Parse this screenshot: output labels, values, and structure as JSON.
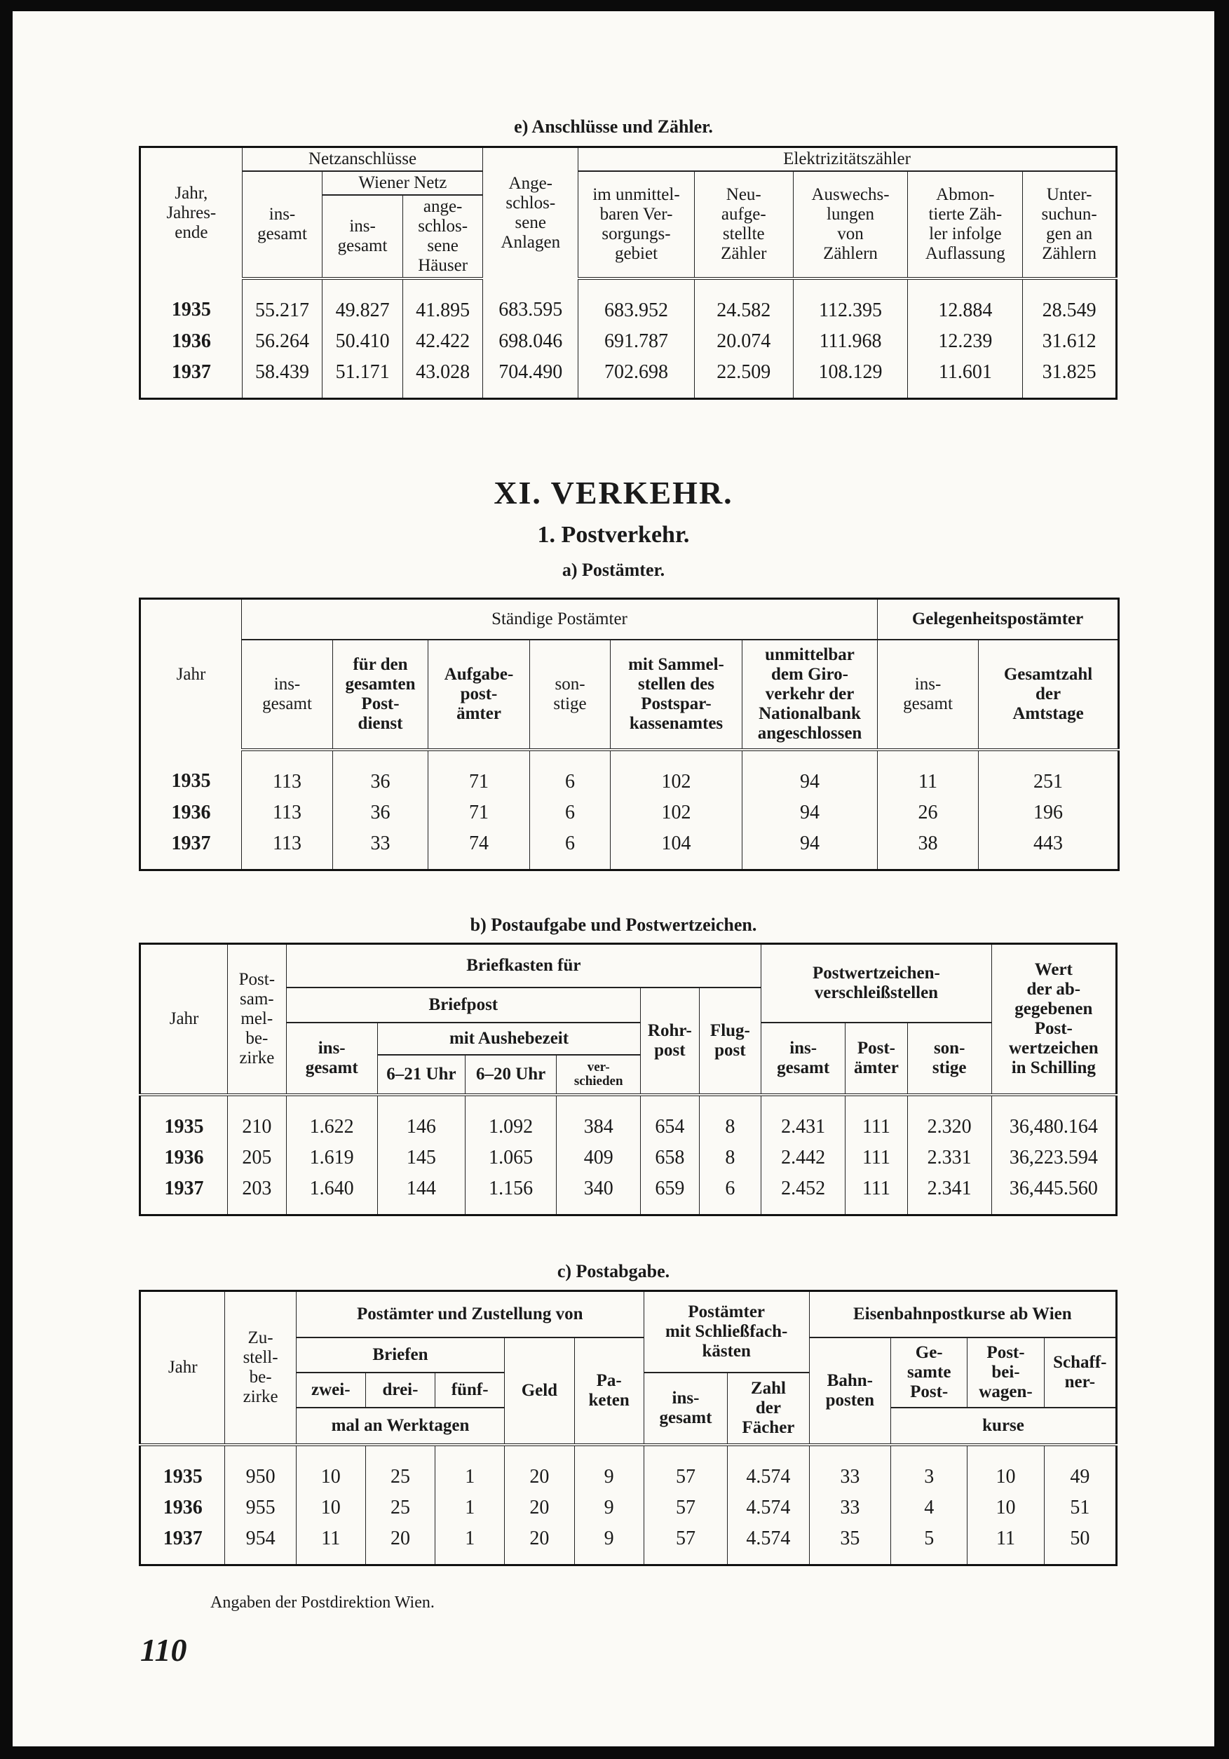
{
  "table_e": {
    "title": "e) Anschlüsse und Zähler.",
    "h_jahr": "Jahr,\nJahres-\nende",
    "h_netz": "Netzanschlüsse",
    "h_netz_ins": "ins-\ngesamt",
    "h_wiener": "Wiener Netz",
    "h_wiener_ins": "ins-\ngesamt",
    "h_wiener_haeuser": "ange-\nschlos-\nsene\nHäuser",
    "h_anlagen": "Ange-\nschlos-\nsene\nAnlagen",
    "h_zaehler": "Elektrizitätszähler",
    "h_z": [
      "im unmittel-\nbaren Ver-\nsorgungs-\ngebiet",
      "Neu-\naufge-\nstellte\nZähler",
      "Auswechs-\nlungen\nvon\nZählern",
      "Abmon-\ntierte Zäh-\nler infolge\nAuflassung",
      "Unter-\nsuchun-\ngen an\nZählern"
    ],
    "rows": [
      [
        "1935",
        "55.217",
        "49.827",
        "41.895",
        "683.595",
        "683.952",
        "24.582",
        "112.395",
        "12.884",
        "28.549"
      ],
      [
        "1936",
        "56.264",
        "50.410",
        "42.422",
        "698.046",
        "691.787",
        "20.074",
        "111.968",
        "12.239",
        "31.612"
      ],
      [
        "1937",
        "58.439",
        "51.171",
        "43.028",
        "704.490",
        "702.698",
        "22.509",
        "108.129",
        "11.601",
        "31.825"
      ]
    ]
  },
  "chapter": "XI. VERKEHR.",
  "section": "1. Postverkehr.",
  "table_a": {
    "title": "a) Postämter.",
    "h_jahr": "Jahr",
    "h_staendig": "Ständige Postämter",
    "h_gelegen": "Gelegenheitspostämter",
    "h_cols": [
      "ins-\ngesamt",
      "für den\ngesamten\nPost-\ndienst",
      "Aufgabe-\npost-\nämter",
      "son-\nstige",
      "mit Sammel-\nstellen des\nPostspar-\nkassenamtes",
      "unmittelbar\ndem Giro-\nverkehr der\nNationalbank\nangeschlossen",
      "ins-\ngesamt",
      "Gesamtzahl\nder\nAmtstage"
    ],
    "rows": [
      [
        "1935",
        "113",
        "36",
        "71",
        "6",
        "102",
        "94",
        "11",
        "251"
      ],
      [
        "1936",
        "113",
        "36",
        "71",
        "6",
        "102",
        "94",
        "26",
        "196"
      ],
      [
        "1937",
        "113",
        "33",
        "74",
        "6",
        "104",
        "94",
        "38",
        "443"
      ]
    ]
  },
  "table_b": {
    "title": "b) Postaufgabe und Postwertzeichen.",
    "h_jahr": "Jahr",
    "h_sammel": "Post-\nsam-\nmel-\nbe-\nzirke",
    "h_briefkasten": "Briefkasten für",
    "h_briefpost": "Briefpost",
    "h_bp_ins": "ins-\ngesamt",
    "h_aushebe": "mit Aushebezeit",
    "h_a1": "6–21 Uhr",
    "h_a2": "6–20 Uhr",
    "h_a3": "ver-\nschieden",
    "h_rohr": "Rohr-\npost",
    "h_flug": "Flug-\npost",
    "h_verschleiss": "Postwertzeichen-\nverschleißstellen",
    "h_v1": "ins-\ngesamt",
    "h_v2": "Post-\nämter",
    "h_v3": "son-\nstige",
    "h_wert": "Wert\nder ab-\ngegebenen\nPost-\nwertzeichen\nin Schilling",
    "rows": [
      [
        "1935",
        "210",
        "1.622",
        "146",
        "1.092",
        "384",
        "654",
        "8",
        "2.431",
        "111",
        "2.320",
        "36,480.164"
      ],
      [
        "1936",
        "205",
        "1.619",
        "145",
        "1.065",
        "409",
        "658",
        "8",
        "2.442",
        "111",
        "2.331",
        "36,223.594"
      ],
      [
        "1937",
        "203",
        "1.640",
        "144",
        "1.156",
        "340",
        "659",
        "6",
        "2.452",
        "111",
        "2.341",
        "36,445.560"
      ]
    ]
  },
  "table_c": {
    "title": "c) Postabgabe.",
    "h_jahr": "Jahr",
    "h_zustell": "Zu-\nstell-\nbe-\nzirke",
    "h_zustellung": "Postämter und Zustellung von",
    "h_briefen": "Briefen",
    "h_zwei": "zwei-",
    "h_drei": "drei-",
    "h_fuenf": "fünf-",
    "h_mal": "mal an Werktagen",
    "h_geld": "Geld",
    "h_pakete": "Pa-\nketen",
    "h_schliess": "Postämter\nmit Schließfach-\nkästen",
    "h_s_ins": "ins-\ngesamt",
    "h_s_zahl": "Zahl\nder\nFächer",
    "h_eisenbahn": "Eisenbahnpostkurse ab Wien",
    "h_bahn": "Bahn-\nposten",
    "h_gesamte": "Ge-\nsamte\nPost-",
    "h_beiwagen": "Post-\nbei-\nwagen-",
    "h_schaffner": "Schaff-\nner-",
    "h_kurse": "kurse",
    "rows": [
      [
        "1935",
        "950",
        "10",
        "25",
        "1",
        "20",
        "9",
        "57",
        "4.574",
        "33",
        "3",
        "10",
        "49"
      ],
      [
        "1936",
        "955",
        "10",
        "25",
        "1",
        "20",
        "9",
        "57",
        "4.574",
        "33",
        "4",
        "10",
        "51"
      ],
      [
        "1937",
        "954",
        "11",
        "20",
        "1",
        "20",
        "9",
        "57",
        "4.574",
        "35",
        "5",
        "11",
        "50"
      ]
    ]
  },
  "footnote": "Angaben der Postdirektion Wien.",
  "page_number": "110"
}
